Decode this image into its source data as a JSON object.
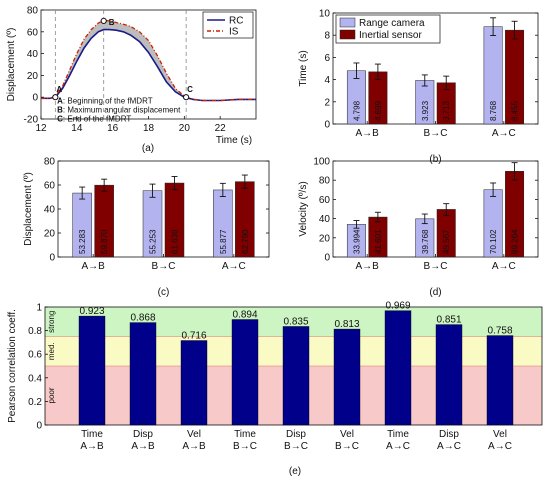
{
  "chart_data": [
    {
      "panel": "(a)",
      "type": "line",
      "xlabel": "Time (s)",
      "ylabel": "Displacement (º)",
      "xlim": [
        12,
        24
      ],
      "ylim": [
        -20,
        80
      ],
      "xticks": [
        "12",
        "14",
        "16",
        "18",
        "20",
        "22"
      ],
      "xtick_values": [
        12,
        14,
        16,
        18,
        20,
        22
      ],
      "yticks": [
        "-20",
        "0",
        "20",
        "40",
        "60",
        "80"
      ],
      "ytick_values": [
        -20,
        0,
        20,
        40,
        60,
        80
      ],
      "legend": [
        "RC",
        "IS"
      ],
      "legend_placement": "top-right",
      "series": [
        {
          "name": "RC",
          "color": "#1a1a8c",
          "x": [
            12,
            12.5,
            12.8,
            13.2,
            13.6,
            14.0,
            14.4,
            14.8,
            15.2,
            15.5,
            15.8,
            16.2,
            16.6,
            17.0,
            17.5,
            18.0,
            18.5,
            19.0,
            19.5,
            20.0,
            20.5,
            21.0,
            22.0,
            23.0,
            24.0
          ],
          "y": [
            -1,
            -1,
            0,
            8,
            20,
            33,
            45,
            54,
            60,
            62,
            62,
            61.5,
            60,
            57,
            51,
            41,
            28,
            14,
            5,
            0,
            -2,
            -3,
            -3,
            -2,
            -2
          ]
        },
        {
          "name": "IS",
          "color": "#cc2200",
          "x": [
            12,
            12.5,
            12.8,
            13.2,
            13.6,
            14.0,
            14.4,
            14.8,
            15.2,
            15.5,
            15.8,
            16.2,
            16.6,
            17.0,
            17.5,
            18.0,
            18.5,
            19.0,
            19.5,
            20.0,
            20.5,
            21.0,
            22.0,
            23.0,
            24.0
          ],
          "y": [
            -1,
            -1,
            1,
            10,
            25,
            40,
            53,
            62,
            68,
            70.5,
            70,
            68.5,
            67,
            65,
            60,
            52,
            38,
            22,
            8,
            1,
            -2,
            -3,
            -3,
            -2,
            -2
          ]
        }
      ],
      "markers": [
        {
          "label": "A",
          "x": 12.8,
          "y": 0
        },
        {
          "label": "B",
          "x": 15.5,
          "y": 70
        },
        {
          "label": "C",
          "x": 20.1,
          "y": 0
        }
      ],
      "annotations": [
        {
          "key": "A",
          "text": ": Beginning of the fMDRT"
        },
        {
          "key": "B",
          "text": ": Maximum angular displacement"
        },
        {
          "key": "C",
          "text": ": End of the fMDRT"
        }
      ]
    },
    {
      "panel": "(b)",
      "type": "bar",
      "ylabel": "Time (s)",
      "ylim": [
        0,
        10
      ],
      "yticks": [
        "0",
        "2",
        "4",
        "6",
        "8",
        "10"
      ],
      "ytick_values": [
        0,
        2,
        4,
        6,
        8,
        10
      ],
      "categories": [
        "A→B",
        "B→C",
        "A→C"
      ],
      "legend_placement": "top-left",
      "series": [
        {
          "name": "Range camera",
          "color": "#b3b3f0",
          "values": [
            4.798,
            3.923,
            8.768
          ],
          "labels": [
            "4.798",
            "3.923",
            "8.768"
          ],
          "errors": [
            0.7,
            0.5,
            0.8
          ]
        },
        {
          "name": "Inertial sensor",
          "color": "#800000",
          "values": [
            4.699,
            3.713,
            8.455
          ],
          "labels": [
            "4.699",
            "3.713",
            "8.455"
          ],
          "errors": [
            0.7,
            0.6,
            0.8
          ]
        }
      ]
    },
    {
      "panel": "(c)",
      "type": "bar",
      "ylabel": "Displacement (º)",
      "ylim": [
        0,
        80
      ],
      "yticks": [
        "0",
        "20",
        "40",
        "60",
        "80"
      ],
      "ytick_values": [
        0,
        20,
        40,
        60,
        80
      ],
      "categories": [
        "A→B",
        "B→C",
        "A→C"
      ],
      "series": [
        {
          "name": "Range camera",
          "color": "#b3b3f0",
          "values": [
            53.283,
            55.253,
            55.877
          ],
          "labels": [
            "53.283",
            "55.253",
            "55.877"
          ],
          "errors": [
            5,
            5.5,
            5.5
          ]
        },
        {
          "name": "Inertial sensor",
          "color": "#800000",
          "values": [
            59.87,
            61.638,
            62.79
          ],
          "labels": [
            "59.870",
            "61.638",
            "62.790"
          ],
          "errors": [
            5,
            5.5,
            5.5
          ]
        }
      ]
    },
    {
      "panel": "(d)",
      "type": "bar",
      "ylabel": "Velocity (º/s)",
      "ylim": [
        0,
        100
      ],
      "yticks": [
        "0",
        "20",
        "40",
        "60",
        "80",
        "100"
      ],
      "ytick_values": [
        0,
        20,
        40,
        60,
        80,
        100
      ],
      "categories": [
        "A→B",
        "B→C",
        "A→C"
      ],
      "series": [
        {
          "name": "Range camera",
          "color": "#b3b3f0",
          "values": [
            33.994,
            39.768,
            70.102
          ],
          "labels": [
            "33.994",
            "39.768",
            "70.102"
          ],
          "errors": [
            4,
            5,
            7
          ]
        },
        {
          "name": "Inertial sensor",
          "color": "#800000",
          "values": [
            41.601,
            49.567,
            89.264
          ],
          "labels": [
            "41.601",
            "49.567",
            "89.264"
          ],
          "errors": [
            5,
            6,
            9
          ]
        }
      ]
    },
    {
      "panel": "(e)",
      "type": "bar",
      "ylabel": "Pearson correlation coeff.",
      "ylim": [
        0,
        1
      ],
      "yticks": [
        "0",
        "0.2",
        "0.4",
        "0.6",
        "0.8",
        "1"
      ],
      "ytick_values": [
        0,
        0.2,
        0.4,
        0.6,
        0.8,
        1
      ],
      "bands": [
        {
          "label": "poor",
          "from": 0,
          "to": 0.5,
          "color": "#f7c9c9"
        },
        {
          "label": "med.",
          "from": 0.5,
          "to": 0.75,
          "color": "#fafac5"
        },
        {
          "label": "strong",
          "from": 0.75,
          "to": 1,
          "color": "#cdf5c3"
        }
      ],
      "categories": [
        {
          "top": "Time",
          "bottom": "A→B"
        },
        {
          "top": "Disp",
          "bottom": "A→B"
        },
        {
          "top": "Vel",
          "bottom": "A→B"
        },
        {
          "top": "Time",
          "bottom": "B→C"
        },
        {
          "top": "Disp",
          "bottom": "B→C"
        },
        {
          "top": "Vel",
          "bottom": "B→C"
        },
        {
          "top": "Time",
          "bottom": "A→C"
        },
        {
          "top": "Disp",
          "bottom": "A→C"
        },
        {
          "top": "Vel",
          "bottom": "A→C"
        }
      ],
      "bar_color": "#00008b",
      "values": [
        0.923,
        0.868,
        0.716,
        0.894,
        0.835,
        0.813,
        0.969,
        0.851,
        0.758
      ],
      "labels": [
        "0.923",
        "0.868",
        "0.716",
        "0.894",
        "0.835",
        "0.813",
        "0.969",
        "0.851",
        "0.758"
      ]
    }
  ]
}
